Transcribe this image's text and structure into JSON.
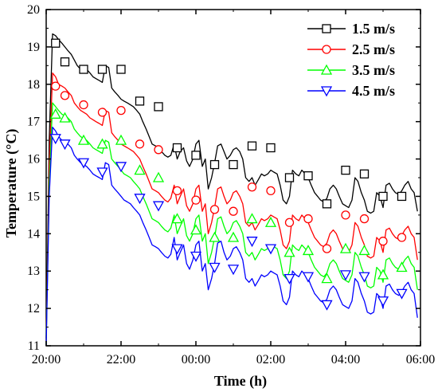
{
  "chart_data": {
    "type": "line",
    "title": "",
    "xlabel": "Time (h)",
    "ylabel": "Temperature (°C)",
    "x_axis": {
      "min": 0,
      "max": 10,
      "ticks": [
        0,
        2,
        4,
        6,
        8,
        10
      ],
      "tick_labels": [
        "20:00",
        "22:00",
        "00:00",
        "02:00",
        "04:00",
        "06:00"
      ]
    },
    "y_axis": {
      "min": 11,
      "max": 20,
      "ticks": [
        11,
        12,
        13,
        14,
        15,
        16,
        17,
        18,
        19,
        20
      ],
      "tick_labels": [
        "11",
        "12",
        "13",
        "14",
        "15",
        "16",
        "17",
        "18",
        "19",
        "20"
      ]
    },
    "grid": false,
    "legend_position": "top-right",
    "series": [
      {
        "name": "1.5 m/s",
        "color": "#000000",
        "marker": "square",
        "x": [
          0,
          0.08,
          0.17,
          0.25,
          0.33,
          0.42,
          0.5,
          0.58,
          0.67,
          0.75,
          0.83,
          0.92,
          1.0,
          1.08,
          1.17,
          1.25,
          1.33,
          1.42,
          1.5,
          1.58,
          1.67,
          1.75,
          1.83,
          1.92,
          2.0,
          2.08,
          2.17,
          2.25,
          2.33,
          2.42,
          2.5,
          2.58,
          2.67,
          2.75,
          2.83,
          2.92,
          3.0,
          3.08,
          3.17,
          3.25,
          3.33,
          3.42,
          3.5,
          3.58,
          3.67,
          3.75,
          3.83,
          3.92,
          4.0,
          4.08,
          4.17,
          4.25,
          4.33,
          4.42,
          4.5,
          4.58,
          4.67,
          4.75,
          4.83,
          4.92,
          5.0,
          5.08,
          5.17,
          5.25,
          5.33,
          5.42,
          5.5,
          5.58,
          5.67,
          5.75,
          5.83,
          5.92,
          6.0,
          6.08,
          6.17,
          6.25,
          6.33,
          6.42,
          6.5,
          6.58,
          6.67,
          6.75,
          6.83,
          6.92,
          7.0,
          7.08,
          7.17,
          7.25,
          7.33,
          7.42,
          7.5,
          7.58,
          7.67,
          7.75,
          7.83,
          7.92,
          8.0,
          8.08,
          8.17,
          8.25,
          8.33,
          8.42,
          8.5,
          8.58,
          8.67,
          8.75,
          8.83,
          8.92,
          9.0,
          9.08,
          9.17,
          9.25,
          9.33,
          9.42,
          9.5,
          9.58,
          9.67,
          9.75,
          9.83,
          9.92
        ],
        "y": [
          11.2,
          16.5,
          19.35,
          19.3,
          19.2,
          19.1,
          19.0,
          18.9,
          18.8,
          18.65,
          18.5,
          18.4,
          18.45,
          18.4,
          18.3,
          18.2,
          18.15,
          18.1,
          18.05,
          18.5,
          18.45,
          17.9,
          17.8,
          17.7,
          17.6,
          17.55,
          17.5,
          17.45,
          17.4,
          17.3,
          17.2,
          17.0,
          16.8,
          16.6,
          16.4,
          16.35,
          16.3,
          16.2,
          16.1,
          16.05,
          16.1,
          16.4,
          16.0,
          16.2,
          16.3,
          15.95,
          15.8,
          16.0,
          16.4,
          16.5,
          15.8,
          16.0,
          15.2,
          15.5,
          15.9,
          16.35,
          16.4,
          16.2,
          16.0,
          16.1,
          16.25,
          16.3,
          16.2,
          16.0,
          15.5,
          15.4,
          15.5,
          15.3,
          15.45,
          15.6,
          15.55,
          15.6,
          15.7,
          15.65,
          15.6,
          15.3,
          14.9,
          14.8,
          15.0,
          15.7,
          15.6,
          15.55,
          15.7,
          15.6,
          15.5,
          15.3,
          15.1,
          15.0,
          14.9,
          14.85,
          14.95,
          15.2,
          15.3,
          15.2,
          15.0,
          14.8,
          14.75,
          14.7,
          14.9,
          15.5,
          15.4,
          15.1,
          14.9,
          14.6,
          14.55,
          14.6,
          15.1,
          15.0,
          14.7,
          15.3,
          15.35,
          15.2,
          15.1,
          15.05,
          15.15,
          15.3,
          15.4,
          15.2,
          15.1,
          14.6
        ],
        "marker_x": [
          0.25,
          0.5,
          1.0,
          1.5,
          2.0,
          2.5,
          3.0,
          3.5,
          4.0,
          4.5,
          5.0,
          5.5,
          6.0,
          6.5,
          7.0,
          7.5,
          8.0,
          8.5,
          9.0,
          9.5
        ],
        "marker_y": [
          19.1,
          18.6,
          18.4,
          18.4,
          18.4,
          17.55,
          17.4,
          16.3,
          16.1,
          15.85,
          15.85,
          16.35,
          16.3,
          15.5,
          15.55,
          14.8,
          15.7,
          15.6,
          15.0,
          15.0
        ]
      },
      {
        "name": "2.5 m/s",
        "color": "#ff0000",
        "marker": "circle",
        "x": [
          0,
          0.08,
          0.17,
          0.25,
          0.33,
          0.42,
          0.5,
          0.58,
          0.67,
          0.75,
          0.83,
          0.92,
          1.0,
          1.08,
          1.17,
          1.25,
          1.33,
          1.42,
          1.5,
          1.58,
          1.67,
          1.75,
          1.83,
          1.92,
          2.0,
          2.08,
          2.17,
          2.25,
          2.33,
          2.42,
          2.5,
          2.58,
          2.67,
          2.75,
          2.83,
          2.92,
          3.0,
          3.08,
          3.17,
          3.25,
          3.33,
          3.42,
          3.5,
          3.58,
          3.67,
          3.75,
          3.83,
          3.92,
          4.0,
          4.08,
          4.17,
          4.25,
          4.33,
          4.42,
          4.5,
          4.58,
          4.67,
          4.75,
          4.83,
          4.92,
          5.0,
          5.08,
          5.17,
          5.25,
          5.33,
          5.42,
          5.5,
          5.58,
          5.67,
          5.75,
          5.83,
          5.92,
          6.0,
          6.08,
          6.17,
          6.25,
          6.33,
          6.42,
          6.5,
          6.58,
          6.67,
          6.75,
          6.83,
          6.92,
          7.0,
          7.08,
          7.17,
          7.25,
          7.33,
          7.42,
          7.5,
          7.58,
          7.67,
          7.75,
          7.83,
          7.92,
          8.0,
          8.08,
          8.17,
          8.25,
          8.33,
          8.42,
          8.5,
          8.58,
          8.67,
          8.75,
          8.83,
          8.92,
          9.0,
          9.08,
          9.17,
          9.25,
          9.33,
          9.42,
          9.5,
          9.58,
          9.67,
          9.75,
          9.83,
          9.92
        ],
        "y": [
          11.1,
          15.8,
          18.3,
          18.2,
          18.0,
          17.95,
          17.9,
          17.8,
          17.7,
          17.5,
          17.4,
          17.3,
          17.25,
          17.2,
          17.1,
          17.05,
          17.0,
          16.95,
          16.9,
          17.3,
          17.25,
          16.7,
          16.6,
          16.5,
          16.4,
          16.35,
          16.3,
          16.25,
          16.2,
          16.1,
          16.0,
          15.8,
          15.6,
          15.4,
          15.2,
          15.15,
          15.1,
          15.0,
          14.9,
          14.85,
          14.95,
          15.3,
          14.8,
          15.0,
          15.2,
          14.75,
          14.6,
          14.8,
          15.2,
          15.3,
          14.6,
          14.8,
          14.0,
          14.3,
          14.7,
          15.2,
          15.25,
          15.0,
          14.8,
          14.9,
          15.1,
          15.15,
          15.0,
          14.8,
          14.3,
          14.2,
          14.3,
          14.1,
          14.25,
          14.4,
          14.35,
          14.4,
          14.5,
          14.45,
          14.4,
          14.1,
          13.7,
          13.6,
          13.8,
          14.5,
          14.4,
          14.35,
          14.5,
          14.4,
          14.3,
          14.1,
          13.9,
          13.8,
          13.7,
          13.65,
          13.75,
          14.0,
          14.1,
          14.0,
          13.8,
          13.6,
          13.55,
          13.5,
          13.7,
          14.3,
          14.2,
          13.9,
          13.7,
          13.4,
          13.35,
          13.4,
          13.9,
          13.8,
          13.5,
          14.1,
          14.15,
          14.0,
          13.9,
          13.85,
          13.95,
          14.1,
          14.2,
          14.0,
          13.9,
          13.3
        ],
        "marker_x": [
          0.25,
          0.5,
          1.0,
          1.5,
          2.0,
          2.5,
          3.0,
          3.5,
          4.0,
          4.5,
          5.0,
          5.5,
          6.0,
          6.5,
          7.0,
          7.5,
          8.0,
          8.5,
          9.0,
          9.5
        ],
        "marker_y": [
          17.95,
          17.7,
          17.45,
          17.25,
          17.3,
          16.4,
          16.25,
          15.15,
          14.9,
          14.65,
          14.6,
          15.25,
          15.15,
          14.3,
          14.4,
          13.6,
          14.5,
          14.4,
          13.8,
          13.9
        ]
      },
      {
        "name": "3.5 m/s",
        "color": "#00ff00",
        "marker": "triangle-up",
        "x": [
          0,
          0.08,
          0.17,
          0.25,
          0.33,
          0.42,
          0.5,
          0.58,
          0.67,
          0.75,
          0.83,
          0.92,
          1.0,
          1.08,
          1.17,
          1.25,
          1.33,
          1.42,
          1.5,
          1.58,
          1.67,
          1.75,
          1.83,
          1.92,
          2.0,
          2.08,
          2.17,
          2.25,
          2.33,
          2.42,
          2.5,
          2.58,
          2.67,
          2.75,
          2.83,
          2.92,
          3.0,
          3.08,
          3.17,
          3.25,
          3.33,
          3.42,
          3.5,
          3.58,
          3.67,
          3.75,
          3.83,
          3.92,
          4.0,
          4.08,
          4.17,
          4.25,
          4.33,
          4.42,
          4.5,
          4.58,
          4.67,
          4.75,
          4.83,
          4.92,
          5.0,
          5.08,
          5.17,
          5.25,
          5.33,
          5.42,
          5.5,
          5.58,
          5.67,
          5.75,
          5.83,
          5.92,
          6.0,
          6.08,
          6.17,
          6.25,
          6.33,
          6.42,
          6.5,
          6.58,
          6.67,
          6.75,
          6.83,
          6.92,
          7.0,
          7.08,
          7.17,
          7.25,
          7.33,
          7.42,
          7.5,
          7.58,
          7.67,
          7.75,
          7.83,
          7.92,
          8.0,
          8.08,
          8.17,
          8.25,
          8.33,
          8.42,
          8.5,
          8.58,
          8.67,
          8.75,
          8.83,
          8.92,
          9.0,
          9.08,
          9.17,
          9.25,
          9.33,
          9.42,
          9.5,
          9.58,
          9.67,
          9.75,
          9.83,
          9.92
        ],
        "y": [
          11.05,
          15.3,
          17.5,
          17.4,
          17.3,
          17.2,
          17.15,
          17.1,
          17.0,
          16.8,
          16.7,
          16.6,
          16.55,
          16.5,
          16.4,
          16.3,
          16.25,
          16.2,
          16.15,
          16.5,
          16.45,
          16.0,
          15.9,
          15.8,
          15.7,
          15.6,
          15.55,
          15.5,
          15.4,
          15.3,
          15.2,
          15.0,
          14.8,
          14.6,
          14.4,
          14.35,
          14.3,
          14.2,
          14.1,
          14.05,
          14.15,
          14.5,
          14.0,
          14.2,
          14.4,
          13.95,
          13.8,
          14.0,
          14.4,
          14.5,
          13.8,
          14.0,
          13.2,
          13.5,
          13.9,
          14.4,
          14.45,
          14.2,
          14.0,
          14.1,
          14.3,
          14.35,
          14.2,
          14.0,
          13.5,
          13.4,
          13.5,
          13.3,
          13.45,
          13.6,
          13.55,
          13.6,
          13.7,
          13.65,
          13.6,
          13.3,
          12.9,
          12.8,
          13.0,
          13.7,
          13.6,
          13.55,
          13.7,
          13.6,
          13.5,
          13.3,
          13.1,
          13.0,
          12.9,
          12.85,
          12.95,
          13.2,
          13.3,
          13.2,
          13.0,
          12.8,
          12.75,
          12.7,
          12.9,
          13.5,
          13.4,
          13.1,
          12.9,
          12.6,
          12.55,
          12.6,
          13.1,
          13.0,
          12.7,
          13.3,
          13.35,
          13.2,
          13.1,
          13.05,
          13.15,
          13.3,
          13.4,
          13.2,
          13.1,
          12.5
        ],
        "marker_x": [
          0.25,
          0.5,
          1.0,
          1.5,
          2.0,
          2.5,
          3.0,
          3.5,
          4.0,
          4.5,
          5.0,
          5.5,
          6.0,
          6.5,
          7.0,
          7.5,
          8.0,
          8.5,
          9.0,
          9.5
        ],
        "marker_y": [
          17.2,
          17.1,
          16.5,
          16.4,
          16.5,
          15.7,
          15.5,
          14.4,
          14.1,
          13.9,
          13.9,
          14.4,
          14.3,
          13.5,
          13.55,
          12.8,
          13.6,
          13.55,
          12.9,
          13.1
        ]
      },
      {
        "name": "4.5 m/s",
        "color": "#0000ff",
        "marker": "triangle-down",
        "x": [
          0,
          0.08,
          0.17,
          0.25,
          0.33,
          0.42,
          0.5,
          0.58,
          0.67,
          0.75,
          0.83,
          0.92,
          1.0,
          1.08,
          1.17,
          1.25,
          1.33,
          1.42,
          1.5,
          1.58,
          1.67,
          1.75,
          1.83,
          1.92,
          2.0,
          2.08,
          2.17,
          2.25,
          2.33,
          2.42,
          2.5,
          2.58,
          2.67,
          2.75,
          2.83,
          2.92,
          3.0,
          3.08,
          3.17,
          3.25,
          3.33,
          3.42,
          3.5,
          3.58,
          3.67,
          3.75,
          3.83,
          3.92,
          4.0,
          4.08,
          4.17,
          4.25,
          4.33,
          4.42,
          4.5,
          4.58,
          4.67,
          4.75,
          4.83,
          4.92,
          5.0,
          5.08,
          5.17,
          5.25,
          5.33,
          5.42,
          5.5,
          5.58,
          5.67,
          5.75,
          5.83,
          5.92,
          6.0,
          6.08,
          6.17,
          6.25,
          6.33,
          6.42,
          6.5,
          6.58,
          6.67,
          6.75,
          6.83,
          6.92,
          7.0,
          7.08,
          7.17,
          7.25,
          7.33,
          7.42,
          7.5,
          7.58,
          7.67,
          7.75,
          7.83,
          7.92,
          8.0,
          8.08,
          8.17,
          8.25,
          8.33,
          8.42,
          8.5,
          8.58,
          8.67,
          8.75,
          8.83,
          8.92,
          9.0,
          9.08,
          9.17,
          9.25,
          9.33,
          9.42,
          9.5,
          9.58,
          9.67,
          9.75,
          9.83,
          9.92
        ],
        "y": [
          11.0,
          15.0,
          16.85,
          16.75,
          16.6,
          16.5,
          16.45,
          16.4,
          16.3,
          16.1,
          16.0,
          15.9,
          15.85,
          15.8,
          15.7,
          15.6,
          15.55,
          15.5,
          15.45,
          15.9,
          15.85,
          15.3,
          15.2,
          15.1,
          15.0,
          14.9,
          14.85,
          14.8,
          14.7,
          14.6,
          14.5,
          14.3,
          14.1,
          13.9,
          13.7,
          13.65,
          13.6,
          13.5,
          13.4,
          13.35,
          13.45,
          13.9,
          13.3,
          13.5,
          13.7,
          13.2,
          13.05,
          13.3,
          13.7,
          13.8,
          13.0,
          13.2,
          12.5,
          12.8,
          13.2,
          13.75,
          13.8,
          13.5,
          13.3,
          13.4,
          13.6,
          13.65,
          13.5,
          13.3,
          12.8,
          12.7,
          12.8,
          12.6,
          12.75,
          12.9,
          12.85,
          12.9,
          13.0,
          12.95,
          12.9,
          12.6,
          12.2,
          12.1,
          12.3,
          13.0,
          12.9,
          12.85,
          13.0,
          12.9,
          12.8,
          12.6,
          12.4,
          12.3,
          12.2,
          12.15,
          12.25,
          12.5,
          12.6,
          12.5,
          12.3,
          12.1,
          12.05,
          12.0,
          12.2,
          12.8,
          12.7,
          12.4,
          12.2,
          11.9,
          11.85,
          11.9,
          12.4,
          12.3,
          12.0,
          12.6,
          12.65,
          12.5,
          12.4,
          12.35,
          12.45,
          12.6,
          12.7,
          12.5,
          12.4,
          11.75
        ],
        "marker_x": [
          0.25,
          0.5,
          1.0,
          1.5,
          2.0,
          2.5,
          3.0,
          3.5,
          4.0,
          4.5,
          5.0,
          5.5,
          6.0,
          6.5,
          7.0,
          7.5,
          8.0,
          8.5,
          9.0,
          9.5
        ],
        "marker_y": [
          16.55,
          16.4,
          15.9,
          15.65,
          15.8,
          14.95,
          14.75,
          13.6,
          13.4,
          13.1,
          13.05,
          13.8,
          13.6,
          12.8,
          12.85,
          12.1,
          12.9,
          12.85,
          12.2,
          12.4
        ]
      }
    ]
  }
}
